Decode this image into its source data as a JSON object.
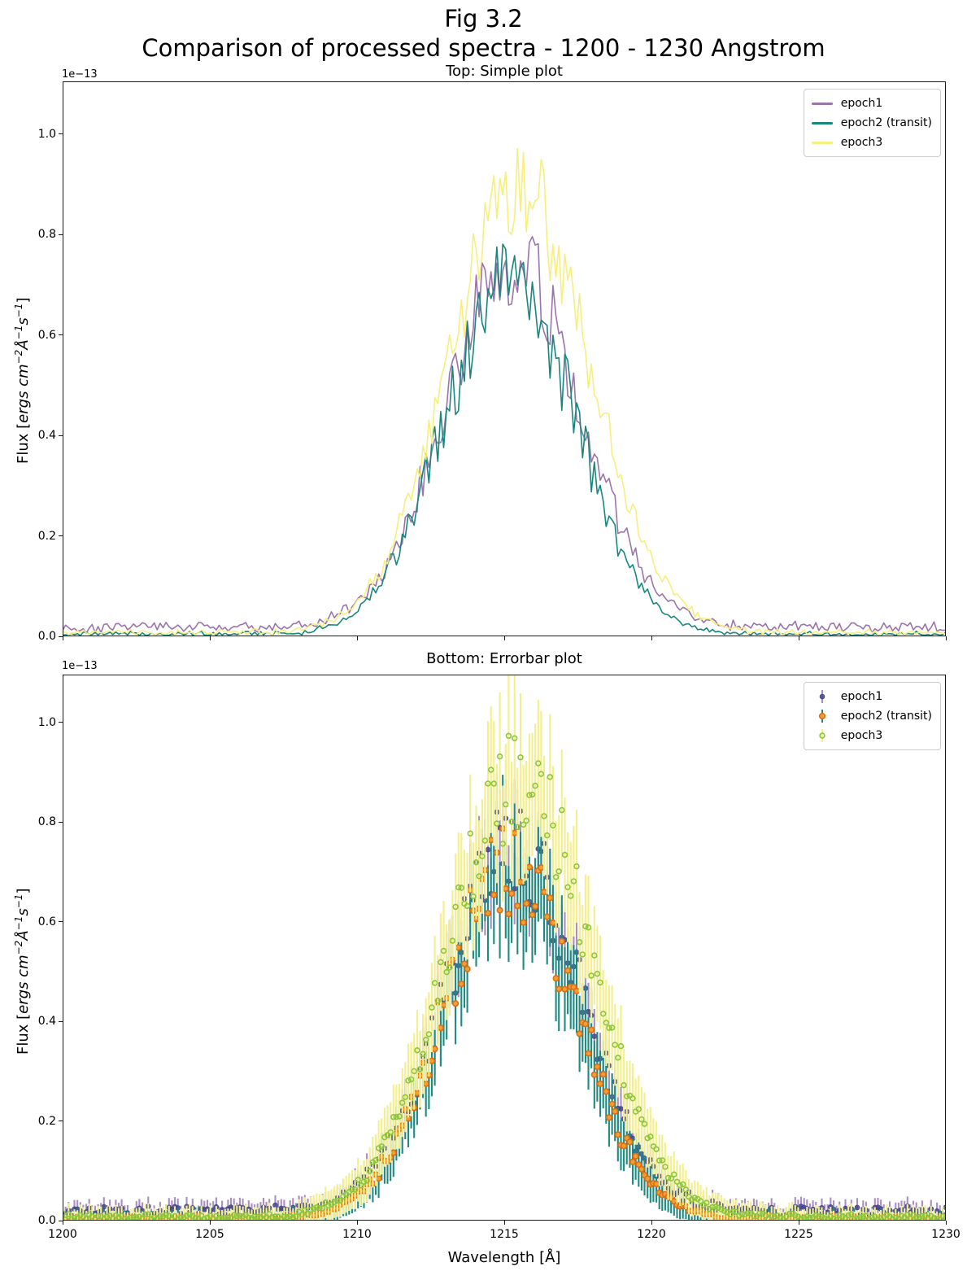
{
  "figure": {
    "suptitle_line1": "Fig 3.2",
    "suptitle_line2": "Comparison of processed spectra - 1200 - 1230 Angstrom",
    "background_color": "#ffffff",
    "ylabel_parts": {
      "pre": "Flux [",
      "w1": "ergs",
      "w2": "cm",
      "e1": "−2",
      "w3": "Å",
      "e2": "−1",
      "w4": "s",
      "e3": "−1",
      "post": "]"
    }
  },
  "chart_data": [
    {
      "id": "top",
      "type": "line",
      "title": "Top: Simple plot",
      "xlabel": "",
      "ylabel": "Flux [ergs cm^-2 A^-1 s^-1]",
      "offset_text": "1e−13",
      "xlim": [
        1200,
        1230
      ],
      "ylim": [
        0,
        1.105
      ],
      "xticks": [
        "1200",
        "1205",
        "1210",
        "1215",
        "1220",
        "1225",
        "1230"
      ],
      "xtick_labels_visible": false,
      "yticks": [
        "0.0",
        "0.2",
        "0.4",
        "0.6",
        "0.8",
        "1.0"
      ],
      "grid": false,
      "legend_position": "upper right",
      "sampling": {
        "x_start": 1200,
        "x_end": 1230,
        "n_points": 300,
        "x_step_angstrom": 0.1
      },
      "line_center_angstrom": 1215.5,
      "series": [
        {
          "name": "epoch1",
          "label": "epoch1",
          "color": "#9b74ab",
          "seed": 101,
          "center": 1215.3,
          "sigma": 2.3,
          "peak": 0.73,
          "peak_noise": 0.13,
          "baseline": 0.018,
          "baseline_noise": 0.5,
          "approx_peak_flux": 0.84
        },
        {
          "name": "epoch2",
          "label": "epoch2 (transit)",
          "color": "#17877e",
          "seed": 202,
          "center": 1215.2,
          "sigma": 2.25,
          "peak": 0.7,
          "peak_noise": 0.14,
          "baseline": 0.004,
          "baseline_noise": 0.6,
          "approx_peak_flux": 0.84
        },
        {
          "name": "epoch3",
          "label": "epoch3",
          "color": "#f6ef7d",
          "seed": 303,
          "center": 1215.5,
          "sigma": 2.4,
          "peak": 0.88,
          "peak_noise": 0.12,
          "baseline": 0.007,
          "baseline_noise": 0.6,
          "approx_peak_flux": 0.99
        }
      ]
    },
    {
      "id": "bottom",
      "type": "errorbar",
      "title": "Bottom: Errorbar plot",
      "xlabel": "Wavelength [Å]",
      "ylabel": "Flux [ergs cm^-2 A^-1 s^-1]",
      "offset_text": "1e−13",
      "xlim": [
        1200,
        1230
      ],
      "ylim": [
        0,
        1.096
      ],
      "xticks": [
        "1200",
        "1205",
        "1210",
        "1215",
        "1220",
        "1225",
        "1230"
      ],
      "xtick_labels_visible": true,
      "yticks": [
        "0.0",
        "0.2",
        "0.4",
        "0.6",
        "0.8",
        "1.0"
      ],
      "grid": false,
      "legend_position": "upper right",
      "sampling": {
        "x_start": 1200,
        "x_end": 1230,
        "n_points": 300,
        "x_step_angstrom": 0.1
      },
      "line_center_angstrom": 1215.5,
      "series": [
        {
          "name": "epoch1",
          "label": "epoch1",
          "seed": 404,
          "center": 1215.3,
          "sigma": 2.3,
          "peak": 0.73,
          "peak_noise": 0.13,
          "baseline": 0.018,
          "baseline_noise": 0.5,
          "err_floor": 0.006,
          "err_scale": 0.08,
          "bar_color": "#a98fc0",
          "marker_fill": "#44458c",
          "marker_edge": "#44458c",
          "marker_style": "filled-circle",
          "approx_peak_flux": 0.82
        },
        {
          "name": "epoch2",
          "label": "epoch2 (transit)",
          "seed": 505,
          "center": 1215.2,
          "sigma": 2.25,
          "peak": 0.7,
          "peak_noise": 0.14,
          "baseline": 0.004,
          "baseline_noise": 0.6,
          "err_floor": 0.006,
          "err_scale": 0.115,
          "bar_color": "#1f8a80",
          "marker_fill": "#f29d38",
          "marker_edge": "#dd6e0e",
          "marker_style": "ring-circle",
          "approx_peak_flux": 0.85
        },
        {
          "name": "epoch3",
          "label": "epoch3",
          "seed": 606,
          "center": 1215.5,
          "sigma": 2.4,
          "peak": 0.88,
          "peak_noise": 0.12,
          "baseline": 0.007,
          "baseline_noise": 0.6,
          "err_floor": 0.008,
          "err_scale": 0.125,
          "bar_color": "#f3ef8a",
          "marker_fill": "none",
          "marker_edge": "#8cc63c",
          "marker_style": "open-circle",
          "approx_peak_flux": 0.99
        }
      ]
    }
  ]
}
